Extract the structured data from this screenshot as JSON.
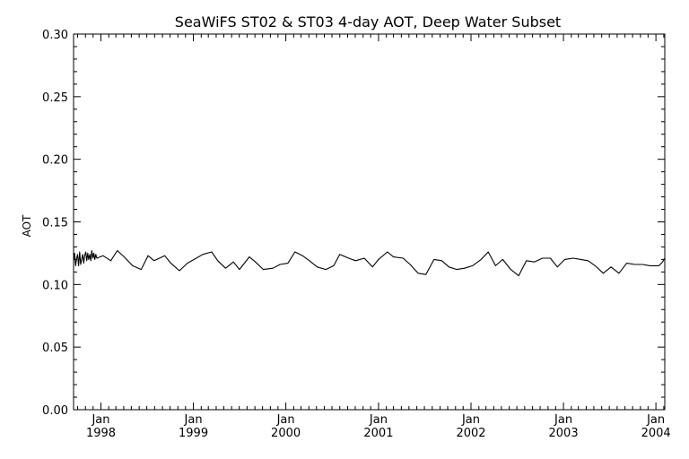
{
  "chart_data": {
    "type": "line",
    "title": "SeaWiFS ST02 & ST03 4-day AOT, Deep Water Subset",
    "xlabel": "",
    "ylabel": "AOT",
    "xlim": [
      "1997-09-15",
      "2004-02-05"
    ],
    "ylim": [
      0.0,
      0.3
    ],
    "yticks": [
      "0.00",
      "0.05",
      "0.10",
      "0.15",
      "0.20",
      "0.25",
      "0.30"
    ],
    "xticks": [
      {
        "date": "1998-01-01",
        "month": "Jan",
        "year": "1998"
      },
      {
        "date": "1999-01-01",
        "month": "Jan",
        "year": "1999"
      },
      {
        "date": "2000-01-01",
        "month": "Jan",
        "year": "2000"
      },
      {
        "date": "2001-01-01",
        "month": "Jan",
        "year": "2001"
      },
      {
        "date": "2002-01-01",
        "month": "Jan",
        "year": "2002"
      },
      {
        "date": "2003-01-01",
        "month": "Jan",
        "year": "2003"
      },
      {
        "date": "2004-01-01",
        "month": "Jan",
        "year": "2004"
      }
    ],
    "grid": false,
    "line_color": "#000000",
    "series": [
      {
        "x": [
          "1997-09-15",
          "1997-09-19",
          "1997-09-23",
          "1997-09-27",
          "1997-10-01",
          "1997-10-05",
          "1997-10-09",
          "1997-10-13",
          "1997-10-17",
          "1997-10-21",
          "1997-10-25",
          "1997-10-29",
          "1997-11-02",
          "1997-11-06",
          "1997-11-10",
          "1997-11-14",
          "1997-11-18",
          "1997-11-22",
          "1997-11-26",
          "1997-11-30",
          "1997-12-04",
          "1997-12-08",
          "1997-12-12",
          "1997-12-16",
          "1998-01-09",
          "1998-02-09",
          "1998-03-07",
          "1998-04-03",
          "1998-05-06",
          "1998-06-09",
          "1998-07-06",
          "1998-07-30",
          "1998-09-10",
          "1998-10-04",
          "1998-11-07",
          "1998-12-08",
          "1999-01-04",
          "1999-02-07",
          "1999-03-14",
          "1999-04-07",
          "1999-05-08",
          "1999-06-08",
          "1999-07-02",
          "1999-08-10",
          "1999-09-03",
          "1999-10-04",
          "1999-11-11",
          "1999-12-09",
          "2000-01-09",
          "2000-02-06",
          "2000-03-07",
          "2000-04-03",
          "2000-05-04",
          "2000-06-07",
          "2000-07-08",
          "2000-08-01",
          "2000-09-05",
          "2000-10-02",
          "2000-11-06",
          "2000-12-08",
          "2001-01-01",
          "2001-02-05",
          "2001-03-01",
          "2001-04-08",
          "2001-05-06",
          "2001-06-06",
          "2001-07-07",
          "2001-08-08",
          "2001-09-08",
          "2001-10-06",
          "2001-11-06",
          "2001-12-07",
          "2002-01-07",
          "2002-02-10",
          "2002-03-10",
          "2002-04-08",
          "2002-05-06",
          "2002-06-07",
          "2002-07-08",
          "2002-08-08",
          "2002-09-08",
          "2002-10-10",
          "2002-11-10",
          "2002-12-08",
          "2003-01-06",
          "2003-02-09",
          "2003-03-10",
          "2003-04-08",
          "2003-05-06",
          "2003-06-07",
          "2003-07-08",
          "2003-08-08",
          "2003-09-08",
          "2003-10-10",
          "2003-11-10",
          "2003-12-08",
          "2004-01-13",
          "2004-01-27",
          "2004-02-05"
        ],
        "y": [
          0.119,
          0.125,
          0.115,
          0.121,
          0.124,
          0.115,
          0.126,
          0.116,
          0.12,
          0.124,
          0.117,
          0.123,
          0.126,
          0.119,
          0.125,
          0.12,
          0.124,
          0.119,
          0.127,
          0.121,
          0.125,
          0.12,
          0.124,
          0.121,
          0.123,
          0.119,
          0.127,
          0.122,
          0.115,
          0.112,
          0.123,
          0.119,
          0.123,
          0.117,
          0.111,
          0.117,
          0.12,
          0.124,
          0.126,
          0.119,
          0.113,
          0.118,
          0.112,
          0.122,
          0.118,
          0.112,
          0.113,
          0.116,
          0.117,
          0.126,
          0.123,
          0.119,
          0.114,
          0.112,
          0.115,
          0.124,
          0.121,
          0.119,
          0.121,
          0.114,
          0.12,
          0.126,
          0.122,
          0.121,
          0.116,
          0.109,
          0.108,
          0.12,
          0.119,
          0.114,
          0.112,
          0.113,
          0.115,
          0.12,
          0.126,
          0.115,
          0.12,
          0.112,
          0.107,
          0.119,
          0.118,
          0.121,
          0.121,
          0.114,
          0.12,
          0.121,
          0.12,
          0.119,
          0.115,
          0.109,
          0.114,
          0.109,
          0.117,
          0.116,
          0.116,
          0.115,
          0.115,
          0.118,
          0.121
        ]
      }
    ]
  }
}
